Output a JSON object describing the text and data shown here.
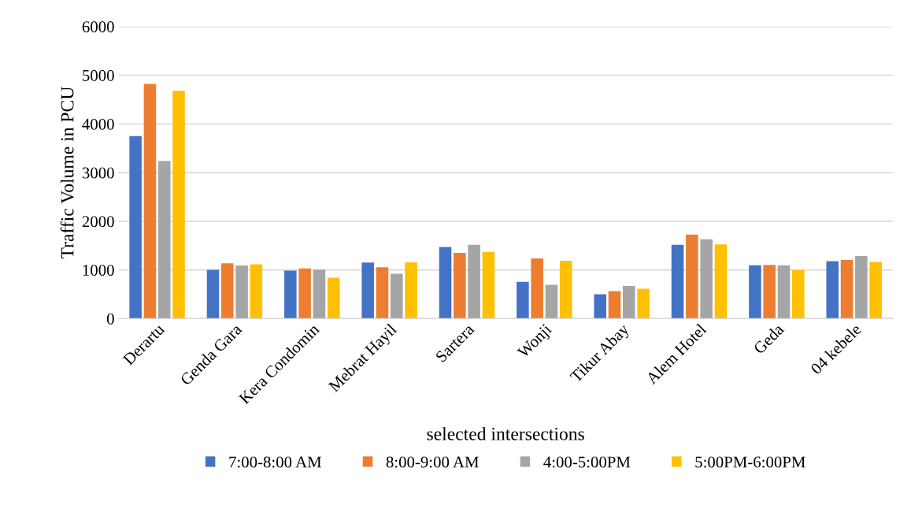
{
  "chart_data": {
    "type": "bar",
    "xlabel": "selected intersections",
    "ylabel": "Traffic Volume in PCU",
    "categories": [
      "Derartu",
      "Genda Gara",
      "Kera Condomin",
      "Mebrat Hayil",
      "Sartera",
      "Wonji",
      "Tikur Abay",
      "Alem Hotel",
      "Geda",
      "04 kebele"
    ],
    "series": [
      {
        "name": "7:00-8:00 AM",
        "color": "#4472c4",
        "values": [
          3750,
          1000,
          985,
          1150,
          1470,
          755,
          500,
          1515,
          1095,
          1180
        ]
      },
      {
        "name": "8:00-9:00 AM",
        "color": "#ed7d31",
        "values": [
          4820,
          1135,
          1030,
          1055,
          1350,
          1235,
          565,
          1725,
          1105,
          1205
        ]
      },
      {
        "name": "4:00-5:00PM",
        "color": "#a5a5a5",
        "values": [
          3240,
          1090,
          1005,
          920,
          1515,
          695,
          670,
          1630,
          1095,
          1285
        ]
      },
      {
        "name": "5:00PM-6:00PM",
        "color": "#ffc000",
        "values": [
          4680,
          1115,
          840,
          1155,
          1370,
          1190,
          615,
          1525,
          995,
          1165
        ]
      }
    ],
    "ylim": [
      0,
      6000
    ],
    "yticks": [
      0,
      1000,
      2000,
      3000,
      4000,
      5000,
      6000
    ],
    "grid": "y",
    "legend": "bottom"
  }
}
